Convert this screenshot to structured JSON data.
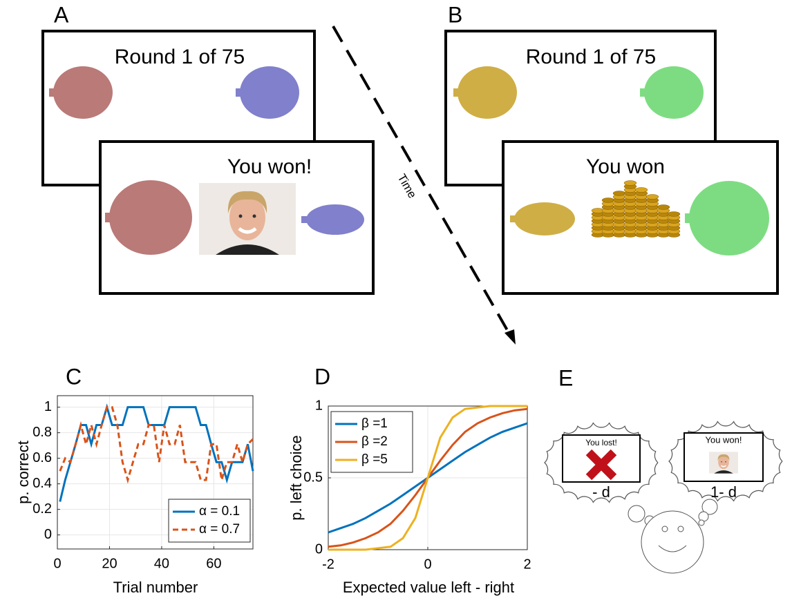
{
  "panels": {
    "A": {
      "label": "A",
      "title": "Round 1 of 75",
      "result": "You won!"
    },
    "B": {
      "label": "B",
      "title": "Round 1 of 75",
      "result": "You won"
    },
    "time": "Time",
    "E": {
      "label": "E",
      "lost": {
        "text": "You lost!",
        "caption": "- d"
      },
      "won": {
        "text": "You won!",
        "caption": "1- d"
      }
    }
  },
  "chart_data": [
    {
      "type": "line",
      "label": "C",
      "xlabel": "Trial number",
      "ylabel": "p. correct",
      "x": [
        1,
        3,
        5,
        7,
        9,
        11,
        13,
        15,
        17,
        19,
        21,
        23,
        25,
        27,
        29,
        31,
        33,
        35,
        37,
        39,
        41,
        43,
        45,
        47,
        49,
        51,
        53,
        55,
        57,
        59,
        61,
        63,
        65,
        67,
        69,
        71,
        73,
        75
      ],
      "series": [
        {
          "name": "α = 0.1",
          "color": "#0072bd",
          "dash": false,
          "values": [
            0.26,
            0.43,
            0.57,
            0.71,
            0.86,
            0.86,
            0.71,
            0.86,
            0.86,
            1,
            0.86,
            0.86,
            0.86,
            1,
            1,
            1,
            1,
            0.86,
            0.86,
            0.86,
            0.86,
            1,
            1,
            1,
            1,
            1,
            1,
            0.86,
            0.86,
            0.71,
            0.57,
            0.57,
            0.43,
            0.57,
            0.57,
            0.57,
            0.71,
            0.5
          ]
        },
        {
          "name": "α = 0.7",
          "color": "#d95319",
          "dash": true,
          "values": [
            0.5,
            0.6,
            0.57,
            0.71,
            0.86,
            0.71,
            0.86,
            0.71,
            0.86,
            1,
            1,
            0.86,
            0.57,
            0.43,
            0.57,
            0.71,
            0.71,
            0.86,
            0.86,
            0.57,
            0.86,
            0.71,
            0.71,
            0.86,
            0.57,
            0.57,
            0.57,
            0.43,
            0.43,
            0.71,
            0.71,
            0.43,
            0.57,
            0.57,
            0.71,
            0.57,
            0.71,
            0.75
          ]
        }
      ],
      "xlim": [
        0,
        75
      ],
      "xticks": [
        0,
        20,
        40,
        60
      ],
      "ylim": [
        -0.11,
        1.09
      ],
      "yticks": [
        0,
        0.2,
        0.4,
        0.6,
        0.8,
        1
      ],
      "grid": true,
      "legend": "lower right"
    },
    {
      "type": "line",
      "label": "D",
      "xlabel": "Expected value left - right",
      "ylabel": "p. left choice",
      "x": [
        -2,
        -1.75,
        -1.5,
        -1.25,
        -1,
        -0.75,
        -0.5,
        -0.25,
        0,
        0.25,
        0.5,
        0.75,
        1,
        1.25,
        1.5,
        1.75,
        2
      ],
      "series": [
        {
          "name": "β =1",
          "color": "#0072bd",
          "dash": false,
          "values": [
            0.12,
            0.15,
            0.18,
            0.22,
            0.27,
            0.32,
            0.38,
            0.44,
            0.5,
            0.56,
            0.62,
            0.68,
            0.73,
            0.78,
            0.82,
            0.85,
            0.88
          ]
        },
        {
          "name": "β =2",
          "color": "#d95319",
          "dash": false,
          "values": [
            0.02,
            0.03,
            0.05,
            0.08,
            0.12,
            0.18,
            0.27,
            0.38,
            0.5,
            0.62,
            0.73,
            0.82,
            0.88,
            0.92,
            0.95,
            0.97,
            0.98
          ]
        },
        {
          "name": "β =5",
          "color": "#edb120",
          "dash": false,
          "values": [
            0,
            0,
            0,
            0,
            0.01,
            0.02,
            0.08,
            0.22,
            0.5,
            0.78,
            0.92,
            0.98,
            0.99,
            1,
            1,
            1,
            1
          ]
        }
      ],
      "xlim": [
        -2,
        2
      ],
      "xticks": [
        -2,
        0,
        2
      ],
      "ylim": [
        0,
        1
      ],
      "yticks": [
        0,
        0.5,
        1
      ],
      "grid": true,
      "legend": "upper left"
    }
  ]
}
